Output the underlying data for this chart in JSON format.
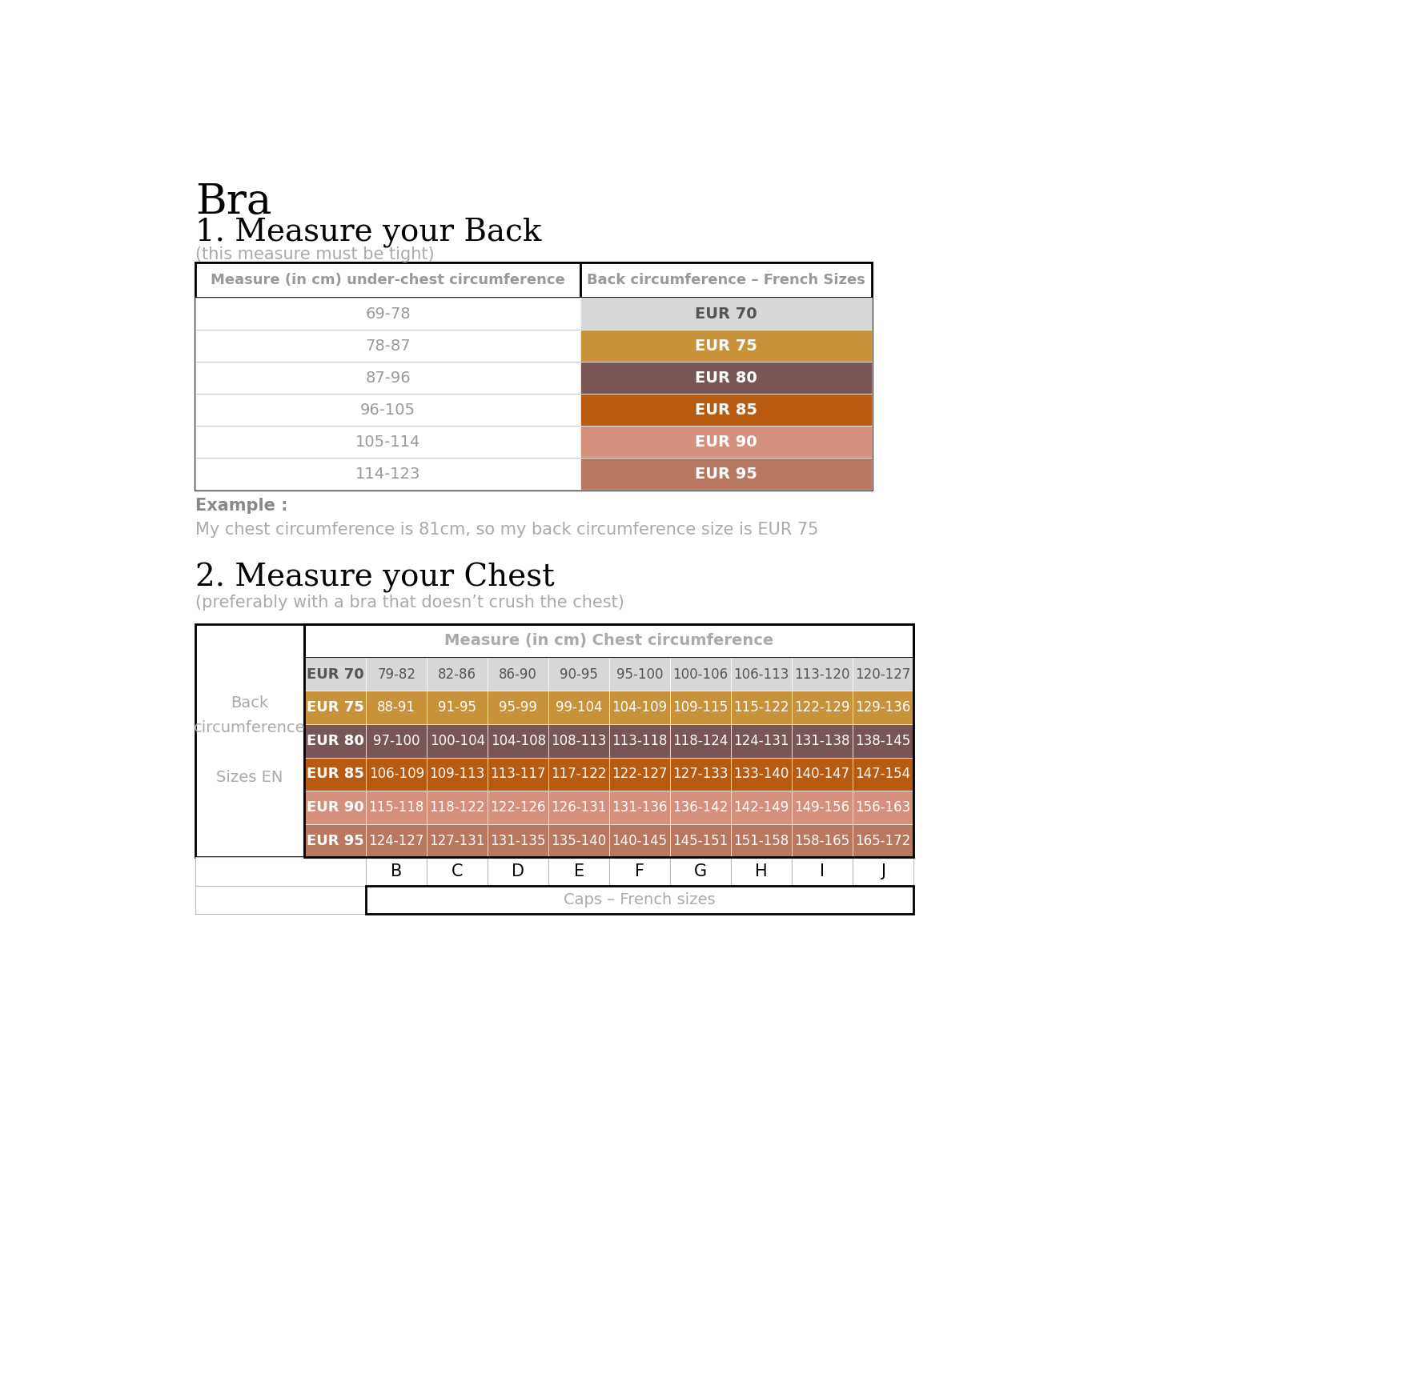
{
  "title": "Bra",
  "section1_title": "1. Measure your Back",
  "section1_note": "(this measure must be tight)",
  "table1_col1_header": "Measure (in cm) under-chest circumference",
  "table1_col2_header": "Back circumference – French Sizes",
  "table1_rows": [
    {
      "measure": "69-78",
      "eur": "EUR 70",
      "color": "#d8d8d8",
      "text_color": "#555555"
    },
    {
      "measure": "78-87",
      "eur": "EUR 75",
      "color": "#c8923a",
      "text_color": "#ffffff"
    },
    {
      "measure": "87-96",
      "eur": "EUR 80",
      "color": "#7a5555",
      "text_color": "#ffffff"
    },
    {
      "measure": "96-105",
      "eur": "EUR 85",
      "color": "#b85a10",
      "text_color": "#ffffff"
    },
    {
      "measure": "105-114",
      "eur": "EUR 90",
      "color": "#d4907a",
      "text_color": "#ffffff"
    },
    {
      "measure": "114-123",
      "eur": "EUR 95",
      "color": "#b87860",
      "text_color": "#ffffff"
    }
  ],
  "example_label": "Example :",
  "example_text": "My chest circumference is 81cm, so my back circumference size is EUR 75",
  "section2_title": "2. Measure your Chest",
  "section2_note": "(preferably with a bra that doesn’t crush the chest)",
  "table2_chest_header": "Measure (in cm) Chest circumference",
  "table2_col_labels": [
    "B",
    "C",
    "D",
    "E",
    "F",
    "G",
    "H",
    "I",
    "J"
  ],
  "table2_rows": [
    {
      "eur": "EUR 70",
      "color": "#d8d8d8",
      "text_color": "#555555",
      "values": [
        "79-82",
        "82-86",
        "86-90",
        "90-95",
        "95-100",
        "100-106",
        "106-113",
        "113-120",
        "120-127"
      ]
    },
    {
      "eur": "EUR 75",
      "color": "#c8923a",
      "text_color": "#ffffff",
      "values": [
        "88-91",
        "91-95",
        "95-99",
        "99-104",
        "104-109",
        "109-115",
        "115-122",
        "122-129",
        "129-136"
      ]
    },
    {
      "eur": "EUR 80",
      "color": "#7a5555",
      "text_color": "#ffffff",
      "values": [
        "97-100",
        "100-104",
        "104-108",
        "108-113",
        "113-118",
        "118-124",
        "124-131",
        "131-138",
        "138-145"
      ]
    },
    {
      "eur": "EUR 85",
      "color": "#b85a10",
      "text_color": "#ffffff",
      "values": [
        "106-109",
        "109-113",
        "113-117",
        "117-122",
        "122-127",
        "127-133",
        "133-140",
        "140-147",
        "147-154"
      ]
    },
    {
      "eur": "EUR 90",
      "color": "#d4907a",
      "text_color": "#ffffff",
      "values": [
        "115-118",
        "118-122",
        "122-126",
        "126-131",
        "131-136",
        "136-142",
        "142-149",
        "149-156",
        "156-163"
      ]
    },
    {
      "eur": "EUR 95",
      "color": "#b87860",
      "text_color": "#ffffff",
      "values": [
        "124-127",
        "127-131",
        "131-135",
        "135-140",
        "140-145",
        "145-151",
        "151-158",
        "158-165",
        "165-172"
      ]
    }
  ],
  "caps_label": "Caps – French sizes",
  "bg_color": "#ffffff"
}
